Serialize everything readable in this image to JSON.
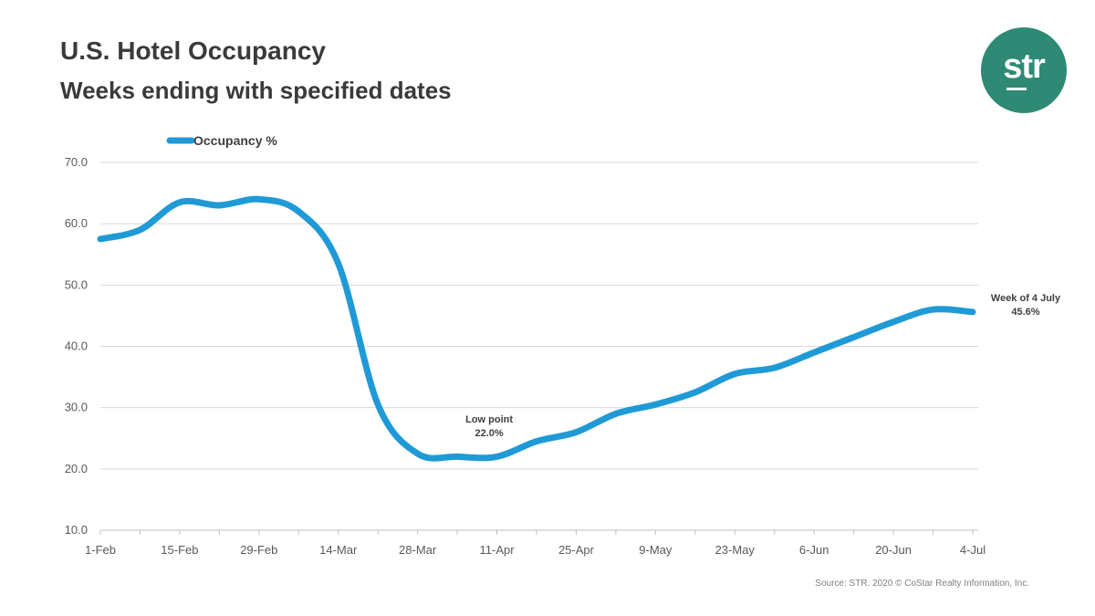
{
  "header": {
    "title": "U.S. Hotel Occupancy",
    "subtitle": "Weeks ending with specified dates"
  },
  "logo": {
    "text": "str",
    "color": "#2e8a74"
  },
  "source": "Source: STR. 2020 © CoStar Realty Information, Inc.",
  "chart_data": {
    "type": "line",
    "title": "U.S. Hotel Occupancy",
    "subtitle": "Weeks ending with specified dates",
    "xlabel": "",
    "ylabel": "",
    "ylim": [
      10,
      70
    ],
    "yticks": [
      "10.0",
      "20.0",
      "30.0",
      "40.0",
      "50.0",
      "60.0",
      "70.0"
    ],
    "xtick_labels": [
      "1-Feb",
      "15-Feb",
      "29-Feb",
      "14-Mar",
      "28-Mar",
      "11-Apr",
      "25-Apr",
      "9-May",
      "23-May",
      "6-Jun",
      "20-Jun",
      "4-Jul"
    ],
    "x": [
      "1-Feb",
      "8-Feb",
      "15-Feb",
      "22-Feb",
      "29-Feb",
      "7-Mar",
      "14-Mar",
      "21-Mar",
      "28-Mar",
      "4-Apr",
      "11-Apr",
      "18-Apr",
      "25-Apr",
      "2-May",
      "9-May",
      "16-May",
      "23-May",
      "30-May",
      "6-Jun",
      "13-Jun",
      "20-Jun",
      "27-Jun",
      "4-Jul"
    ],
    "grid": true,
    "legend": "top-left",
    "series": [
      {
        "name": "Occupancy %",
        "color": "#1f9ad6",
        "values": [
          57.5,
          59.0,
          63.5,
          63.0,
          64.0,
          62.0,
          53.5,
          30.5,
          22.5,
          22.0,
          22.0,
          24.5,
          26.0,
          29.0,
          30.5,
          32.5,
          35.5,
          36.5,
          39.0,
          41.5,
          44.0,
          46.0,
          45.6
        ]
      }
    ],
    "annotations": [
      {
        "x": "4-Apr",
        "line1": "Low point",
        "line2": "22.0%"
      },
      {
        "x": "4-Jul",
        "line1": "Week of 4 July",
        "line2": "45.6%"
      }
    ]
  }
}
